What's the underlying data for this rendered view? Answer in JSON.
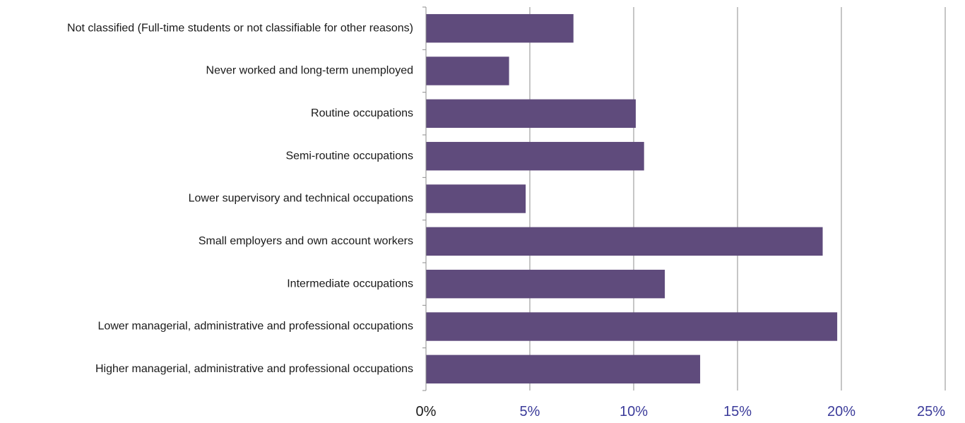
{
  "chart_data": {
    "type": "bar",
    "orientation": "horizontal",
    "title": "",
    "xlabel": "",
    "ylabel": "",
    "categories": [
      "Not classified (Full-time students or not classifiable for other reasons)",
      "Never worked and long-term unemployed",
      "Routine occupations",
      "Semi-routine occupations",
      "Lower supervisory and technical occupations",
      "Small employers and own account workers",
      "Intermediate occupations",
      "Lower managerial, administrative and professional occupations",
      "Higher managerial, administrative and professional occupations"
    ],
    "values": [
      7.1,
      4.0,
      10.1,
      10.5,
      4.8,
      19.1,
      11.5,
      19.8,
      13.2
    ],
    "xlim": [
      0,
      25
    ],
    "xticks": [
      0,
      5,
      10,
      15,
      20,
      25
    ],
    "xtick_labels": [
      "0%",
      "5%",
      "10%",
      "15%",
      "20%",
      "25%"
    ],
    "grid": "vertical",
    "legend": "none",
    "colors": {
      "bar": "#5f4b7c",
      "gridline": "#8c8c8c",
      "axis": "#8c8c8c",
      "tick_label_first": "#1a1a1a",
      "tick_label": "#3b3b9a",
      "category_label": "#1a1a1a"
    }
  }
}
